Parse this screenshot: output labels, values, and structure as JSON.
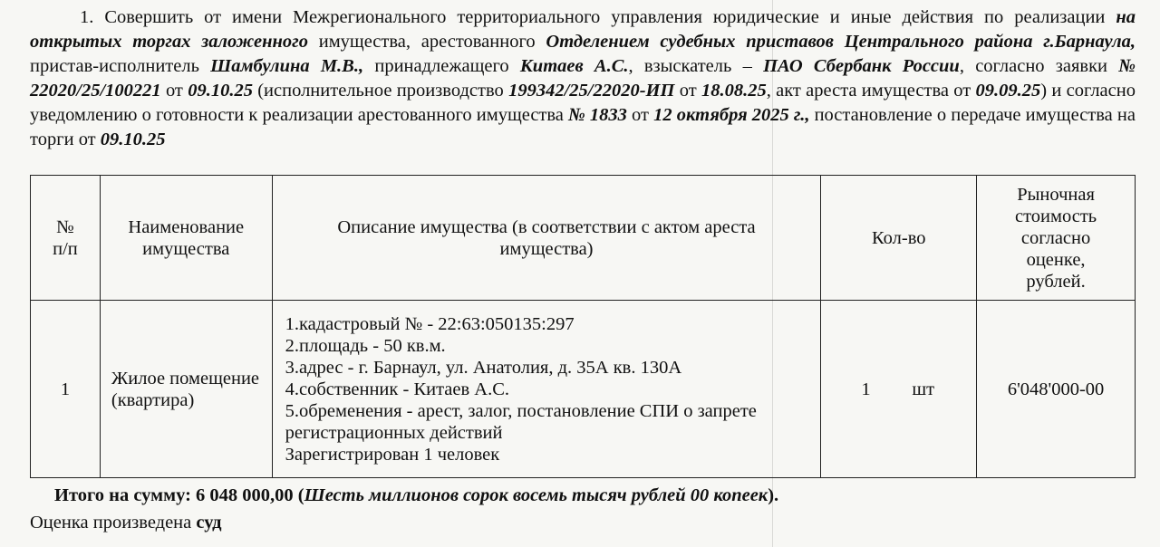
{
  "paragraph": {
    "s1": "1. Совершить от имени Межрегионального территориального управления юридические и иные действия по реализации ",
    "b1": "на открытых торгах заложенного",
    "s2": " имущества, арестованного ",
    "b2": "Отделением судебных приставов Центрального района г.Барнаула,",
    "s3": " пристав-исполнитель ",
    "b3": "Шамбулина М.В.,",
    "s4": " принадлежащего ",
    "b4": "Китаев А.С.",
    "s5": ", взыскатель – ",
    "b5": "ПАО Сбербанк России",
    "s6": ", согласно заявки ",
    "b6": "№ 22020/25/100221",
    "s7": " от ",
    "b7": "09.10.25",
    "s8": " (исполнительное производство ",
    "b8": "199342/25/22020-ИП",
    "s9": " от ",
    "b9": "18.08.25",
    "s10": ", акт ареста имущества от ",
    "b10": "09.09.25",
    "s11": ") и согласно уведомлению о готовности к реализации арестованного имущества ",
    "b11": "№ 1833",
    "s12": " от ",
    "b12": "12 октября 2025 г.,",
    "s13": " постановление о передаче имущества на торги от ",
    "b13": "09.10.25"
  },
  "table": {
    "headers": [
      "№ п/п",
      "Наименование имущества",
      "Описание имущества (в соответствии с актом ареста имущества)",
      "Кол-во",
      "Рыночная стоимость согласно оценке, рублей."
    ],
    "rows": [
      {
        "num": "1",
        "name": "Жилое помещение (квартира)",
        "description": [
          "1.кадастровый № - 22:63:050135:297",
          "2.площадь - 50 кв.м.",
          "3.адрес - г. Барнаул, ул. Анатолия, д. 35А кв. 130А",
          "4.собственник - Китаев А.С.",
          "5.обременения - арест, залог, постановление СПИ о запрете регистрационных действий",
          "Зарегистрирован 1 человек"
        ],
        "qty": "1",
        "unit": "шт",
        "price": "6'048'000-00"
      }
    ]
  },
  "total": {
    "label": "Итого на сумму: 6 048 000,00 (",
    "words": "Шесть миллионов сорок восемь тысяч рублей 00 копеек",
    "end": ")."
  },
  "note": {
    "text": "Оценка произведена ",
    "bold": "суд"
  }
}
